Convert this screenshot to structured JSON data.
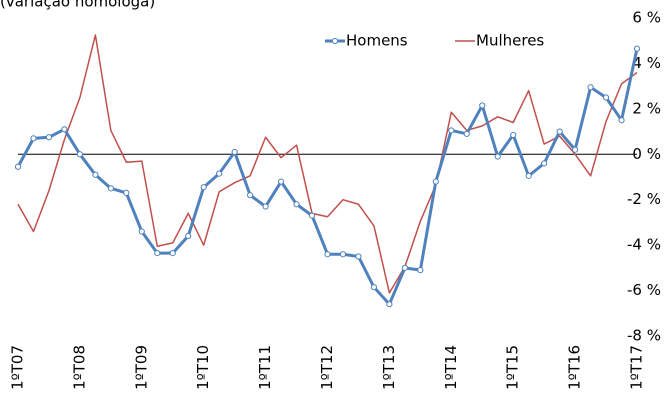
{
  "chart_data": {
    "type": "line",
    "subtitle": "(variação homóloga)",
    "categories": [
      "1ºT07",
      null,
      null,
      null,
      "1ºT08",
      null,
      null,
      null,
      "1ºT09",
      null,
      null,
      null,
      "1ºT10",
      null,
      null,
      null,
      "1ºT11",
      null,
      null,
      null,
      "1ºT12",
      null,
      null,
      null,
      "1ºT13",
      null,
      null,
      null,
      "1ºT14",
      null,
      null,
      null,
      "1ºT15",
      null,
      null,
      null,
      "1ºT16",
      null,
      null,
      null,
      "1ºT17"
    ],
    "series": [
      {
        "name": "Homens",
        "color": "#4f81bd",
        "values": [
          -0.55,
          0.7,
          0.75,
          1.1,
          0,
          -0.9,
          -1.5,
          -1.7,
          -3.4,
          -4.35,
          -4.35,
          -3.6,
          -1.45,
          -0.85,
          0.1,
          -1.8,
          -2.3,
          -1.2,
          -2.2,
          -2.7,
          -4.4,
          -4.4,
          -4.5,
          -5.85,
          -6.6,
          -5.0,
          -5.1,
          -1.2,
          1.05,
          0.9,
          2.15,
          -0.1,
          0.85,
          -0.95,
          -0.4,
          1.0,
          0.2,
          2.95,
          2.5,
          1.5,
          4.65
        ]
      },
      {
        "name": "Mulheres",
        "color": "#c0504d",
        "values": [
          -2.2,
          -3.4,
          -1.6,
          0.65,
          2.5,
          5.25,
          1.05,
          -0.35,
          -0.3,
          -4.05,
          -3.9,
          -2.6,
          -4.0,
          -1.65,
          -1.25,
          -0.95,
          0.75,
          -0.15,
          0.4,
          -2.6,
          -2.75,
          -2.0,
          -2.2,
          -3.15,
          -6.1,
          -4.95,
          -2.95,
          -1.35,
          1.85,
          1.05,
          1.25,
          1.65,
          1.4,
          2.8,
          0.45,
          0.8,
          0,
          -0.95,
          1.45,
          3.1,
          3.6
        ]
      }
    ],
    "ylim": [
      -8,
      6
    ],
    "yticks": [
      {
        "value": -8,
        "label": "-8 %"
      },
      {
        "value": -6,
        "label": "-6 %"
      },
      {
        "value": -4,
        "label": "-4 %"
      },
      {
        "value": -2,
        "label": "-2 %"
      },
      {
        "value": 0,
        "label": "0 %"
      },
      {
        "value": 2,
        "label": "2 %"
      },
      {
        "value": 4,
        "label": "4 %"
      },
      {
        "value": 6,
        "label": "6 %"
      }
    ],
    "grid": false
  }
}
